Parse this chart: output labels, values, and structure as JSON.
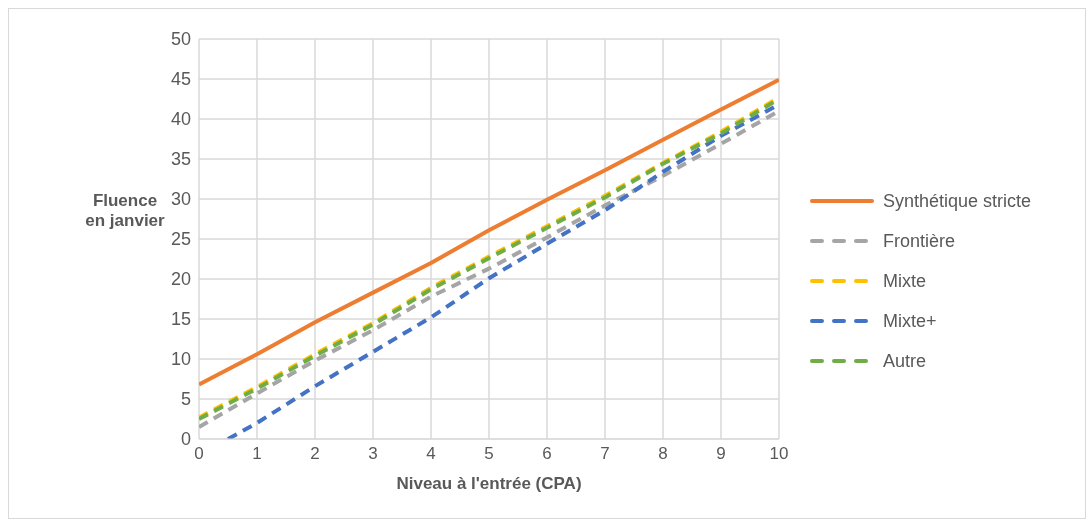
{
  "chart_data": {
    "type": "line",
    "xlabel": "Niveau à l'entrée (CPA)",
    "ylabel": "Fluence en janvier",
    "x": [
      0,
      1,
      2,
      3,
      4,
      5,
      6,
      7,
      8,
      9,
      10
    ],
    "series": [
      {
        "name": "Synthétique stricte",
        "color": "#ed7d31",
        "line_style": "solid",
        "values": [
          6.8,
          10.6,
          14.6,
          18.3,
          22.0,
          26.1,
          29.9,
          33.6,
          37.4,
          41.2,
          44.9
        ]
      },
      {
        "name": "Frontière",
        "color": "#a5a5a5",
        "line_style": "dashed",
        "values": [
          1.5,
          5.7,
          9.8,
          13.6,
          17.8,
          21.3,
          25.2,
          29.2,
          32.9,
          36.9,
          41.0
        ]
      },
      {
        "name": "Mixte",
        "color": "#ffc000",
        "line_style": "dashed",
        "values": [
          2.7,
          6.5,
          10.6,
          14.5,
          18.9,
          22.8,
          26.6,
          30.4,
          34.5,
          38.4,
          42.7
        ]
      },
      {
        "name": "Mixte+",
        "color": "#4472c4",
        "line_style": "dashed",
        "x": [
          0.5,
          1,
          2,
          3,
          4,
          5,
          6,
          7,
          8,
          9,
          10
        ],
        "values": [
          0,
          2.0,
          6.6,
          10.9,
          15.2,
          20.1,
          24.4,
          28.6,
          33.4,
          37.9,
          41.8
        ]
      },
      {
        "name": "Autre",
        "color": "#70ad47",
        "line_style": "dashed",
        "values": [
          2.5,
          6.3,
          10.4,
          14.3,
          18.7,
          22.6,
          26.4,
          30.2,
          34.4,
          38.2,
          42.5
        ]
      }
    ],
    "xlim": [
      0,
      10
    ],
    "xticks": [
      0,
      1,
      2,
      3,
      4,
      5,
      6,
      7,
      8,
      9,
      10
    ],
    "ylim": [
      0,
      50
    ],
    "yticks": [
      0,
      5,
      10,
      15,
      20,
      25,
      30,
      35,
      40,
      45,
      50
    ],
    "grid": true,
    "legend": "right",
    "marker": "none"
  }
}
